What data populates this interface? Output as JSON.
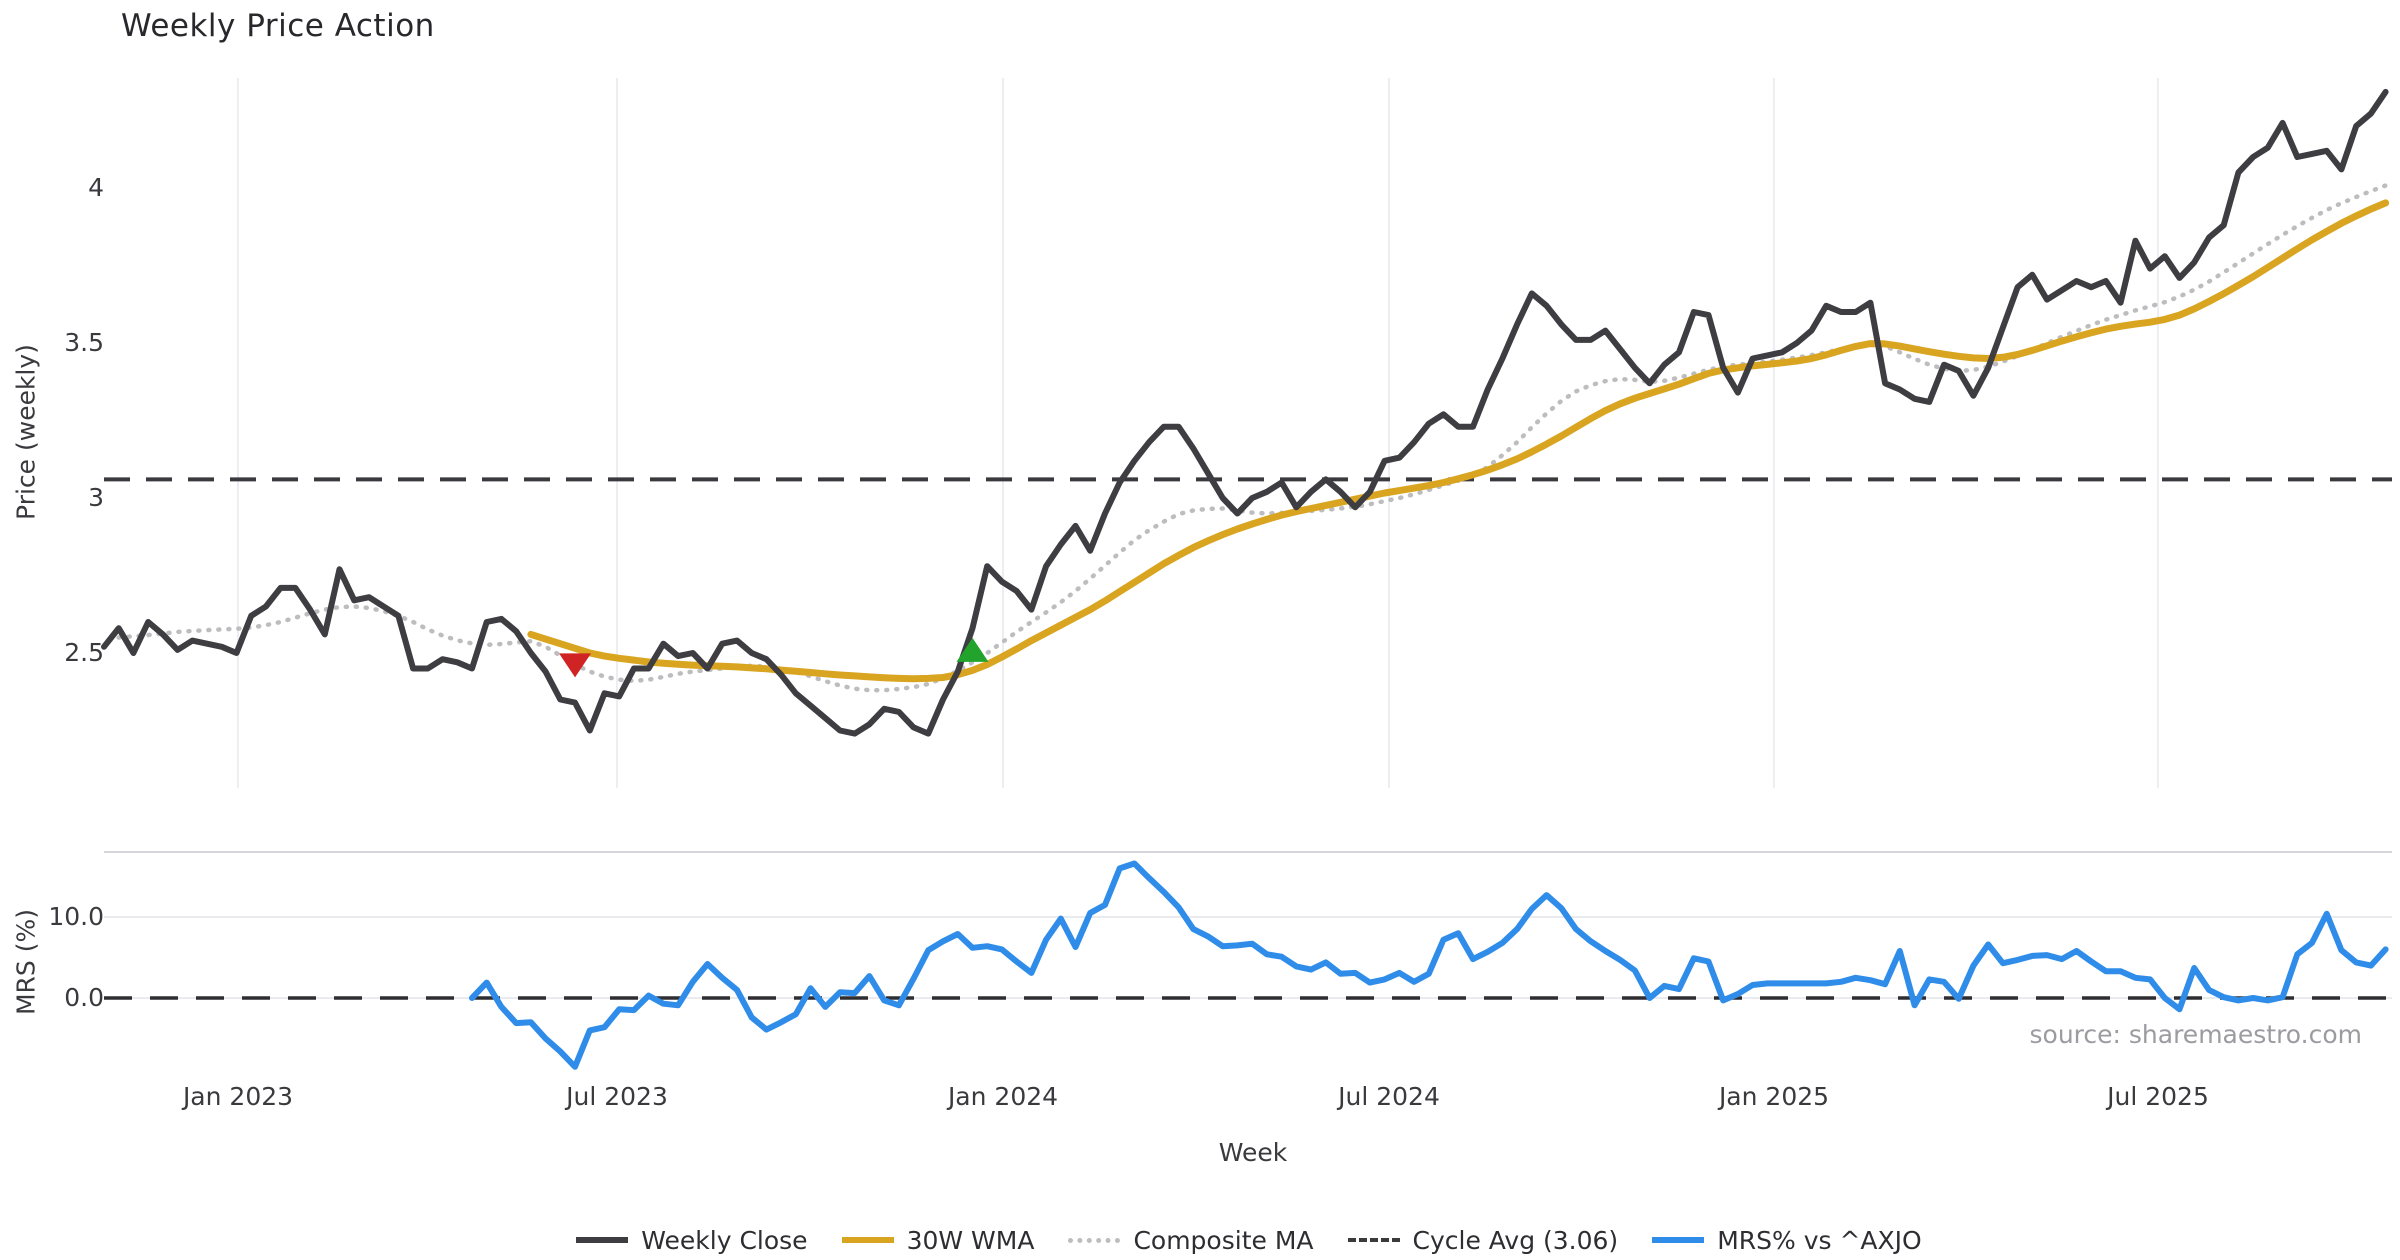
{
  "chart": {
    "title": "Weekly Price Action",
    "xlabel": "Week",
    "source": "source: sharemaestro.com",
    "price_panel": {
      "ylabel": "Price (weekly)",
      "yticks": [
        {
          "label": "4",
          "value": 4
        },
        {
          "label": "3.5",
          "value": 3.5
        },
        {
          "label": "3",
          "value": 3
        },
        {
          "label": "2.5",
          "value": 2.5
        }
      ]
    },
    "mrs_panel": {
      "ylabel": "MRS (%)",
      "yticks": [
        {
          "label": "10.0",
          "value": 10.0
        },
        {
          "label": "0.0",
          "value": 0.0
        }
      ]
    },
    "xticks": [
      "Jan 2023",
      "Jul 2023",
      "Jan 2024",
      "Jul 2024",
      "Jan 2025",
      "Jul 2025"
    ],
    "legend": [
      {
        "label": "Weekly Close",
        "style": "solid",
        "color": "#3d3d42"
      },
      {
        "label": "30W WMA",
        "style": "solid",
        "color": "#d9a521"
      },
      {
        "label": "Composite MA",
        "style": "dotted",
        "color": "#bdbdbf"
      },
      {
        "label": "Cycle Avg (3.06)",
        "style": "dashed",
        "color": "#3b3b3b"
      },
      {
        "label": "MRS% vs ^AXJO",
        "style": "solid",
        "color": "#2f8de9"
      }
    ],
    "colors": {
      "weekly_close": "#3d3d42",
      "wma": "#d9a521",
      "composite": "#bdbdbf",
      "cycle_avg": "#3a3a3e",
      "mrs": "#2f8de9",
      "zero_line": "#2e2e32",
      "grid": "#eceef2",
      "panel_border": "#d4d6db",
      "buy_marker": "#22a42c",
      "sell_marker": "#d02424"
    }
  },
  "chart_data": {
    "type": "line",
    "freq": "weekly",
    "start_date": "2022-10-31",
    "end_date": "2025-10-20",
    "x_axis_label": "Week",
    "price_ylim": [
      2.13,
      4.42
    ],
    "mrs_ylim": [
      -9.6,
      18.0
    ],
    "cycle_avg_value": 3.06,
    "mrs_zero_line": 0.0,
    "series": [
      {
        "name": "Weekly Close",
        "panel": "price",
        "style": "solid",
        "values": [
          2.52,
          2.58,
          2.5,
          2.6,
          2.56,
          2.51,
          2.54,
          2.53,
          2.52,
          2.5,
          2.62,
          2.65,
          2.71,
          2.71,
          2.64,
          2.56,
          2.77,
          2.67,
          2.68,
          2.65,
          2.62,
          2.45,
          2.45,
          2.48,
          2.47,
          2.45,
          2.6,
          2.61,
          2.57,
          2.5,
          2.44,
          2.35,
          2.34,
          2.25,
          2.37,
          2.36,
          2.45,
          2.45,
          2.53,
          2.49,
          2.5,
          2.45,
          2.53,
          2.54,
          2.5,
          2.48,
          2.43,
          2.37,
          2.33,
          2.29,
          2.25,
          2.24,
          2.27,
          2.32,
          2.31,
          2.26,
          2.24,
          2.35,
          2.44,
          2.58,
          2.78,
          2.73,
          2.7,
          2.64,
          2.78,
          2.85,
          2.91,
          2.83,
          2.95,
          3.05,
          3.12,
          3.18,
          3.23,
          3.23,
          3.16,
          3.08,
          3.0,
          2.95,
          3.0,
          3.02,
          3.05,
          2.97,
          3.02,
          3.06,
          3.02,
          2.97,
          3.02,
          3.12,
          3.13,
          3.18,
          3.24,
          3.27,
          3.23,
          3.23,
          3.35,
          3.45,
          3.56,
          3.66,
          3.62,
          3.56,
          3.51,
          3.51,
          3.54,
          3.48,
          3.42,
          3.37,
          3.43,
          3.47,
          3.6,
          3.59,
          3.42,
          3.34,
          3.45,
          3.46,
          3.47,
          3.5,
          3.54,
          3.62,
          3.6,
          3.6,
          3.63,
          3.37,
          3.35,
          3.32,
          3.31,
          3.43,
          3.41,
          3.33,
          3.42,
          3.55,
          3.68,
          3.72,
          3.64,
          3.67,
          3.7,
          3.68,
          3.7,
          3.63,
          3.83,
          3.74,
          3.78,
          3.71,
          3.76,
          3.84,
          3.88,
          4.05,
          4.1,
          4.13,
          4.21,
          4.1,
          4.11,
          4.12,
          4.06,
          4.2,
          4.24,
          4.31
        ]
      },
      {
        "name": "30W WMA",
        "panel": "price",
        "style": "solid",
        "values": [
          null,
          null,
          null,
          null,
          null,
          null,
          null,
          null,
          null,
          null,
          null,
          null,
          null,
          null,
          null,
          null,
          null,
          null,
          null,
          null,
          null,
          null,
          null,
          null,
          null,
          null,
          null,
          null,
          null,
          2.56,
          2.545,
          2.53,
          2.515,
          2.5,
          2.49,
          2.483,
          2.477,
          2.471,
          2.467,
          2.464,
          2.461,
          2.459,
          2.457,
          2.455,
          2.452,
          2.449,
          2.445,
          2.441,
          2.437,
          2.433,
          2.429,
          2.426,
          2.423,
          2.42,
          2.418,
          2.417,
          2.418,
          2.421,
          2.43,
          2.444,
          2.463,
          2.487,
          2.513,
          2.54,
          2.565,
          2.59,
          2.615,
          2.64,
          2.668,
          2.698,
          2.728,
          2.758,
          2.788,
          2.815,
          2.84,
          2.862,
          2.882,
          2.9,
          2.916,
          2.931,
          2.945,
          2.956,
          2.966,
          2.976,
          2.986,
          2.996,
          3.006,
          3.016,
          3.024,
          3.032,
          3.04,
          3.05,
          3.062,
          3.075,
          3.09,
          3.107,
          3.126,
          3.149,
          3.174,
          3.2,
          3.228,
          3.256,
          3.282,
          3.304,
          3.322,
          3.337,
          3.352,
          3.367,
          3.385,
          3.402,
          3.413,
          3.42,
          3.426,
          3.431,
          3.436,
          3.442,
          3.45,
          3.462,
          3.476,
          3.489,
          3.498,
          3.497,
          3.49,
          3.481,
          3.472,
          3.464,
          3.457,
          3.452,
          3.45,
          3.454,
          3.463,
          3.476,
          3.491,
          3.506,
          3.52,
          3.533,
          3.545,
          3.554,
          3.561,
          3.567,
          3.576,
          3.59,
          3.61,
          3.634,
          3.659,
          3.686,
          3.714,
          3.744,
          3.774,
          3.804,
          3.833,
          3.86,
          3.886,
          3.91,
          3.932,
          3.952
        ]
      },
      {
        "name": "Composite MA",
        "panel": "price",
        "style": "dotted",
        "values": [
          null,
          2.55,
          2.554,
          2.558,
          2.563,
          2.568,
          2.571,
          2.574,
          2.576,
          2.578,
          2.582,
          2.59,
          2.6,
          2.614,
          2.628,
          2.64,
          2.648,
          2.65,
          2.645,
          2.635,
          2.62,
          2.6,
          2.576,
          2.556,
          2.541,
          2.531,
          2.526,
          2.529,
          2.534,
          2.538,
          2.52,
          2.492,
          2.463,
          2.44,
          2.424,
          2.414,
          2.41,
          2.414,
          2.423,
          2.433,
          2.44,
          2.445,
          2.45,
          2.455,
          2.459,
          2.456,
          2.449,
          2.439,
          2.425,
          2.409,
          2.395,
          2.385,
          2.38,
          2.38,
          2.384,
          2.39,
          2.4,
          2.419,
          2.443,
          2.47,
          2.5,
          2.534,
          2.568,
          2.6,
          2.631,
          2.664,
          2.7,
          2.74,
          2.782,
          2.824,
          2.864,
          2.896,
          2.924,
          2.948,
          2.96,
          2.965,
          2.966,
          2.96,
          2.953,
          2.95,
          2.952,
          2.955,
          2.958,
          2.962,
          2.966,
          2.972,
          2.98,
          2.99,
          3.0,
          3.012,
          3.026,
          3.041,
          3.056,
          3.072,
          3.1,
          3.138,
          3.18,
          3.228,
          3.273,
          3.313,
          3.344,
          3.364,
          3.377,
          3.384,
          3.381,
          3.375,
          3.378,
          3.388,
          3.401,
          3.414,
          3.424,
          3.43,
          3.435,
          3.44,
          3.446,
          3.453,
          3.461,
          3.47,
          3.48,
          3.49,
          3.499,
          3.49,
          3.47,
          3.449,
          3.43,
          3.417,
          3.41,
          3.413,
          3.424,
          3.44,
          3.458,
          3.478,
          3.499,
          3.52,
          3.539,
          3.558,
          3.575,
          3.59,
          3.605,
          3.618,
          3.632,
          3.65,
          3.672,
          3.698,
          3.728,
          3.758,
          3.789,
          3.819,
          3.849,
          3.877,
          3.904,
          3.929,
          3.951,
          3.971,
          3.99,
          4.008
        ]
      },
      {
        "name": "MRS% vs ^AXJO",
        "panel": "mrs",
        "style": "solid",
        "values": [
          null,
          null,
          null,
          null,
          null,
          null,
          null,
          null,
          null,
          null,
          null,
          null,
          null,
          null,
          null,
          null,
          null,
          null,
          null,
          null,
          null,
          null,
          null,
          null,
          null,
          0.0,
          1.9,
          -1.1,
          -3.1,
          -3.0,
          -5.0,
          -6.6,
          -8.5,
          -4.0,
          -3.6,
          -1.4,
          -1.5,
          0.3,
          -0.7,
          -0.9,
          2.0,
          4.2,
          2.5,
          1.0,
          -2.4,
          -3.9,
          -3.0,
          -2.0,
          1.2,
          -1.1,
          0.7,
          0.6,
          2.7,
          -0.3,
          -0.9,
          2.4,
          5.9,
          7.0,
          7.9,
          6.2,
          6.4,
          6.0,
          4.5,
          3.1,
          7.2,
          9.8,
          6.3,
          10.5,
          11.5,
          16.0,
          16.6,
          14.8,
          13.1,
          11.2,
          8.5,
          7.6,
          6.4,
          6.5,
          6.7,
          5.4,
          5.1,
          3.9,
          3.5,
          4.4,
          3.0,
          3.1,
          1.9,
          2.3,
          3.1,
          2.0,
          3.0,
          7.2,
          8.0,
          4.8,
          5.7,
          6.8,
          8.5,
          11.0,
          12.7,
          11.1,
          8.5,
          7.0,
          5.8,
          4.7,
          3.4,
          0.0,
          1.5,
          1.1,
          4.9,
          4.5,
          -0.3,
          0.5,
          1.6,
          1.8,
          1.8,
          1.8,
          1.8,
          1.8,
          2.0,
          2.5,
          2.2,
          1.7,
          5.8,
          -0.9,
          2.3,
          2.0,
          -0.1,
          4.0,
          6.6,
          4.3,
          4.7,
          5.2,
          5.3,
          4.8,
          5.8,
          4.5,
          3.3,
          3.3,
          2.5,
          2.3,
          0.0,
          -1.4,
          3.7,
          1.0,
          0.1,
          -0.3,
          0.0,
          -0.3,
          0.1,
          5.4,
          6.8,
          10.4,
          5.9,
          4.4,
          4.0,
          6.0
        ]
      }
    ],
    "markers": [
      {
        "type": "sell",
        "shape": "triangle-down",
        "week_index": 32,
        "date": "2023-06-12",
        "price": 2.46
      },
      {
        "type": "buy",
        "shape": "triangle-up",
        "week_index": 59,
        "date": "2023-12-18",
        "price": 2.51
      }
    ]
  }
}
